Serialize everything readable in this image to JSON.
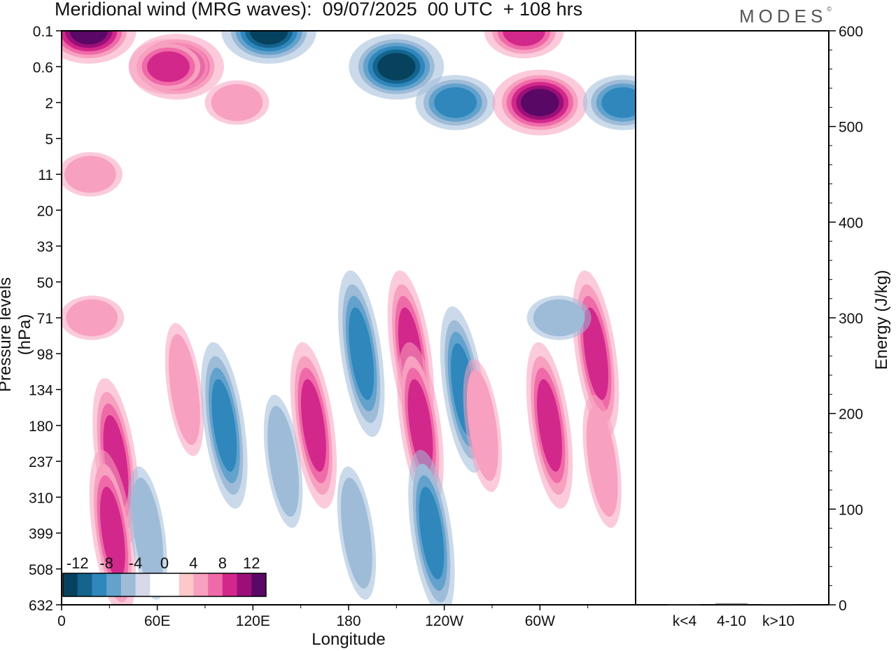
{
  "title": "Meridional wind (MRG waves):  09/07/2025  00 UTC  + 108 hrs",
  "brand": "MODES",
  "brand_mark": "©",
  "chart_data": [
    {
      "type": "heatmap",
      "title": "Meridional wind (MRG waves):  09/07/2025  00 UTC  + 108 hrs",
      "xlabel": "Longitude",
      "ylabel": "Pressure levels (hPa)",
      "x_ticks": [
        "0",
        "60E",
        "120E",
        "180",
        "120W",
        "60W"
      ],
      "y_ticks": [
        "0.1",
        "0.6",
        "2",
        "5",
        "11",
        "20",
        "33",
        "50",
        "71",
        "98",
        "134",
        "180",
        "237",
        "310",
        "399",
        "508",
        "632"
      ],
      "colorbar": {
        "tick_labels": [
          "-12",
          "-8",
          "-4",
          "0",
          "4",
          "8",
          "12"
        ],
        "colors": [
          "#06425e",
          "#14648e",
          "#2f87bc",
          "#62a2cc",
          "#9ebbd8",
          "#d6d9ea",
          "#ffffff",
          "#ffffff",
          "#fdc8c8",
          "#f7a0bf",
          "#ef6aa8",
          "#d2288b",
          "#9c0f78",
          "#5a0866"
        ]
      },
      "features": [
        {
          "lon_deg": 17,
          "level": "0.1",
          "value": 12
        },
        {
          "lon_deg": 72,
          "level": "0.6",
          "value": 12
        },
        {
          "lon_deg": 67,
          "level": "0.6",
          "value": 8
        },
        {
          "lon_deg": 130,
          "level": "0.1",
          "value": -12
        },
        {
          "lon_deg": 210,
          "level": "0.6",
          "value": -12
        },
        {
          "lon_deg": 247,
          "level": "2",
          "value": -8
        },
        {
          "lon_deg": 290,
          "level": "0.1",
          "value": 8
        },
        {
          "lon_deg": 300,
          "level": "2",
          "value": 12
        },
        {
          "lon_deg": 352,
          "level": "2",
          "value": -8
        },
        {
          "lon_deg": 110,
          "level": "2",
          "value": 4
        },
        {
          "lon_deg": 18,
          "level": "11",
          "value": 4
        },
        {
          "lon_deg": 19,
          "level": "71",
          "value": 4
        },
        {
          "lon_deg": 34,
          "level": "237",
          "value": 8
        },
        {
          "lon_deg": 32,
          "level": "399",
          "value": 8
        },
        {
          "lon_deg": 54,
          "level": "399",
          "value": -4
        },
        {
          "lon_deg": 77,
          "level": "134",
          "value": 4
        },
        {
          "lon_deg": 102,
          "level": "180",
          "value": -8
        },
        {
          "lon_deg": 139,
          "level": "237",
          "value": -4
        },
        {
          "lon_deg": 158,
          "level": "180",
          "value": 8
        },
        {
          "lon_deg": 188,
          "level": "98",
          "value": -8
        },
        {
          "lon_deg": 185,
          "level": "399",
          "value": -4
        },
        {
          "lon_deg": 219,
          "level": "98",
          "value": 8
        },
        {
          "lon_deg": 225,
          "level": "180",
          "value": 8
        },
        {
          "lon_deg": 232,
          "level": "399",
          "value": -8
        },
        {
          "lon_deg": 252,
          "level": "134",
          "value": -8
        },
        {
          "lon_deg": 264,
          "level": "180",
          "value": 4
        },
        {
          "lon_deg": 306,
          "level": "180",
          "value": 8
        },
        {
          "lon_deg": 335,
          "level": "98",
          "value": 8
        },
        {
          "lon_deg": 339,
          "level": "237",
          "value": 4
        },
        {
          "lon_deg": 312,
          "level": "71",
          "value": -4
        }
      ]
    },
    {
      "type": "bar",
      "ylabel": "Energy (J/kg)",
      "categories": [
        "k<4",
        "4-10",
        "k>10"
      ],
      "values": [
        0.3,
        1.2,
        0.2
      ],
      "ylim": [
        0,
        600
      ],
      "y_ticks": [
        "0",
        "100",
        "200",
        "300",
        "400",
        "500",
        "600"
      ]
    }
  ]
}
